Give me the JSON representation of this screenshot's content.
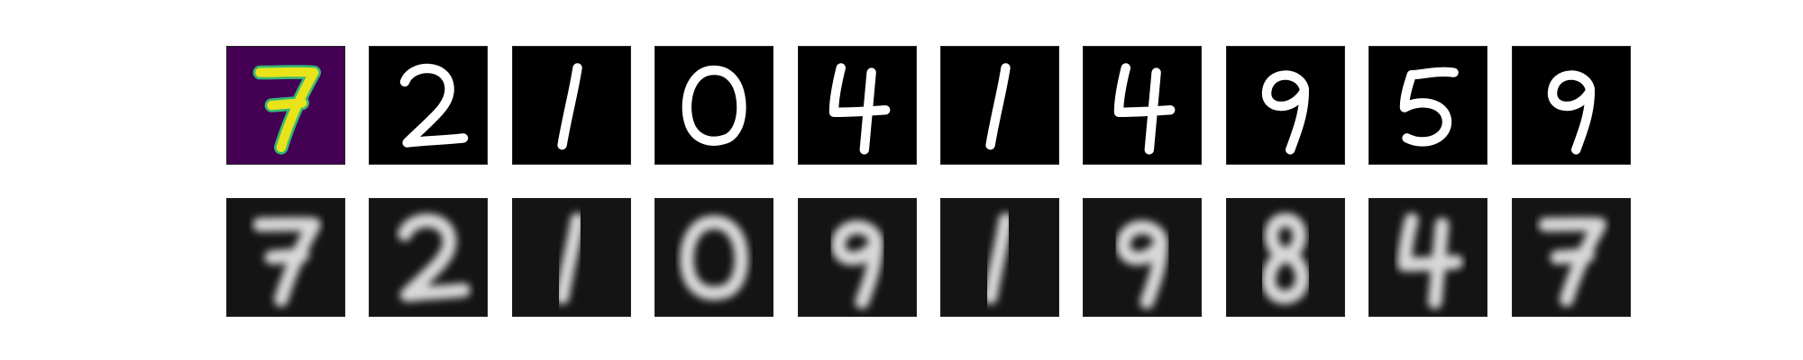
{
  "rows": [
    {
      "id": "original",
      "blur": 0,
      "digits": [
        {
          "digit": "7",
          "colormap": "viridis"
        },
        {
          "digit": "2",
          "colormap": "gray"
        },
        {
          "digit": "1",
          "colormap": "gray"
        },
        {
          "digit": "0",
          "colormap": "gray"
        },
        {
          "digit": "4",
          "colormap": "gray"
        },
        {
          "digit": "1",
          "colormap": "gray"
        },
        {
          "digit": "4",
          "colormap": "gray"
        },
        {
          "digit": "9",
          "colormap": "gray"
        },
        {
          "digit": "5",
          "colormap": "gray"
        },
        {
          "digit": "9",
          "colormap": "gray"
        }
      ]
    },
    {
      "id": "reconstructed",
      "blur": 1,
      "digits": [
        {
          "digit": "7",
          "colormap": "gray"
        },
        {
          "digit": "2",
          "colormap": "gray"
        },
        {
          "digit": "1",
          "colormap": "gray"
        },
        {
          "digit": "0",
          "colormap": "gray"
        },
        {
          "digit": "9",
          "colormap": "gray"
        },
        {
          "digit": "1",
          "colormap": "gray"
        },
        {
          "digit": "9",
          "colormap": "gray"
        },
        {
          "digit": "8",
          "colormap": "gray"
        },
        {
          "digit": "4",
          "colormap": "gray"
        },
        {
          "digit": "7",
          "colormap": "gray"
        }
      ]
    }
  ],
  "colors": {
    "viridis_background": "#440154",
    "viridis_stroke": "#e8e419",
    "viridis_edge": "#35b779",
    "gray_background": "#000000",
    "gray_reconstructed_background": "#141414",
    "gray_stroke": "#ffffff",
    "gray_reconstructed_stroke": "#d8d8d8"
  }
}
